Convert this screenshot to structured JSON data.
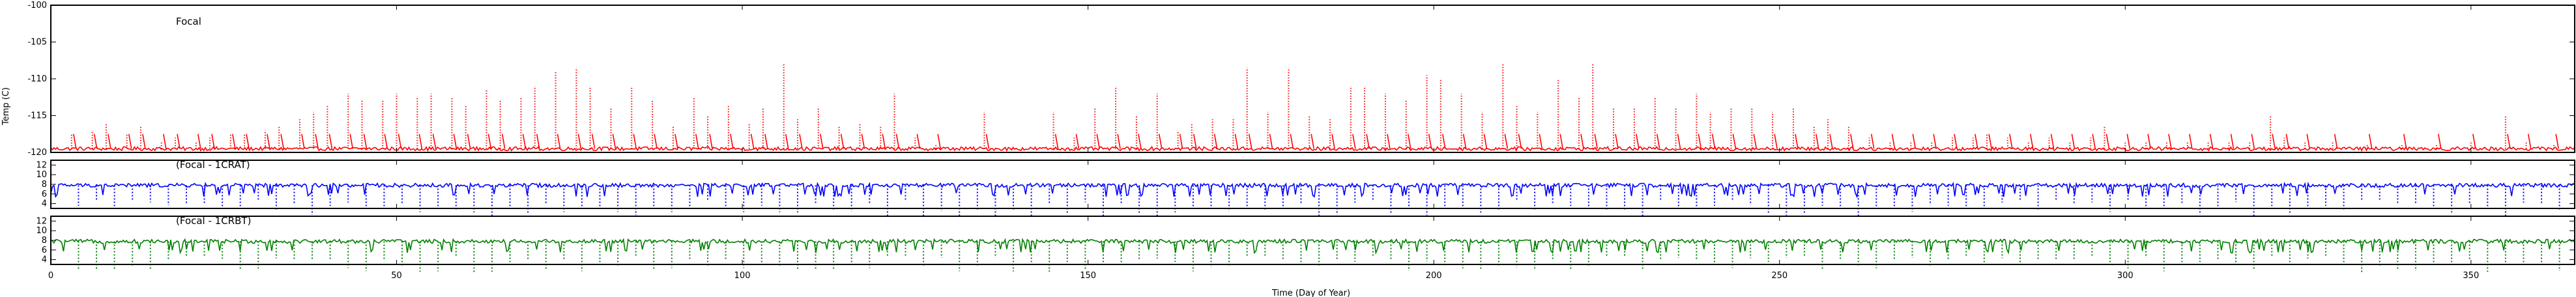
{
  "chart_data": [
    {
      "type": "line",
      "label": "Focal",
      "ylabel": "Temp (C)",
      "ylim": [
        -120,
        -100
      ],
      "yticks": [
        -120,
        -115,
        -110,
        -105,
        -100
      ],
      "xlim": [
        0,
        365
      ],
      "color": "#ff0000",
      "baseline": -119.5,
      "spikes": [
        [
          3,
          -117.5
        ],
        [
          6,
          -117.0
        ],
        [
          8,
          -116.0
        ],
        [
          11,
          -117.5
        ],
        [
          13,
          -116.5
        ],
        [
          16,
          -118.5
        ],
        [
          18,
          -118.0
        ],
        [
          21,
          -118.5
        ],
        [
          23,
          -118.0
        ],
        [
          26,
          -117.5
        ],
        [
          28,
          -117.5
        ],
        [
          31,
          -117.0
        ],
        [
          33,
          -116.5
        ],
        [
          36,
          -115.5
        ],
        [
          38,
          -114.5
        ],
        [
          40,
          -113.5
        ],
        [
          43,
          -112.0
        ],
        [
          45,
          -113.0
        ],
        [
          48,
          -113.0
        ],
        [
          50,
          -112.0
        ],
        [
          53,
          -112.5
        ],
        [
          55,
          -112.0
        ],
        [
          58,
          -112.5
        ],
        [
          60,
          -113.5
        ],
        [
          63,
          -111.5
        ],
        [
          65,
          -113.0
        ],
        [
          68,
          -112.5
        ],
        [
          70,
          -111.0
        ],
        [
          73,
          -109.0
        ],
        [
          76,
          -108.5
        ],
        [
          78,
          -111.0
        ],
        [
          81,
          -114.0
        ],
        [
          84,
          -111.0
        ],
        [
          87,
          -113.0
        ],
        [
          90,
          -116.5
        ],
        [
          93,
          -112.5
        ],
        [
          95,
          -115.0
        ],
        [
          98,
          -113.5
        ],
        [
          101,
          -116.0
        ],
        [
          103,
          -114.0
        ],
        [
          106,
          -108.0
        ],
        [
          108,
          -115.5
        ],
        [
          111,
          -114.0
        ],
        [
          114,
          -116.5
        ],
        [
          117,
          -116.0
        ],
        [
          120,
          -116.5
        ],
        [
          122,
          -112.0
        ],
        [
          125,
          -118.0
        ],
        [
          128,
          -119.0
        ],
        [
          135,
          -114.5
        ],
        [
          145,
          -114.5
        ],
        [
          148,
          -118.0
        ],
        [
          151,
          -114.0
        ],
        [
          154,
          -111.0
        ],
        [
          157,
          -115.0
        ],
        [
          160,
          -112.0
        ],
        [
          163,
          -117.0
        ],
        [
          165,
          -116.0
        ],
        [
          168,
          -115.5
        ],
        [
          171,
          -115.5
        ],
        [
          173,
          -108.5
        ],
        [
          176,
          -114.5
        ],
        [
          179,
          -108.5
        ],
        [
          182,
          -115.0
        ],
        [
          185,
          -115.5
        ],
        [
          188,
          -111.0
        ],
        [
          190,
          -111.0
        ],
        [
          193,
          -112.0
        ],
        [
          196,
          -113.0
        ],
        [
          199,
          -109.5
        ],
        [
          201,
          -110.0
        ],
        [
          204,
          -112.0
        ],
        [
          207,
          -114.5
        ],
        [
          210,
          -108.0
        ],
        [
          212,
          -113.5
        ],
        [
          215,
          -114.5
        ],
        [
          218,
          -110.0
        ],
        [
          221,
          -112.5
        ],
        [
          223,
          -108.0
        ],
        [
          226,
          -114.0
        ],
        [
          229,
          -114.0
        ],
        [
          232,
          -112.5
        ],
        [
          235,
          -114.0
        ],
        [
          238,
          -112.0
        ],
        [
          240,
          -114.5
        ],
        [
          243,
          -114.0
        ],
        [
          246,
          -114.0
        ],
        [
          249,
          -114.5
        ],
        [
          252,
          -114.0
        ],
        [
          255,
          -116.5
        ],
        [
          257,
          -115.5
        ],
        [
          260,
          -116.5
        ],
        [
          263,
          -118.0
        ],
        [
          266,
          -118.5
        ],
        [
          269,
          -118.5
        ],
        [
          272,
          -118.5
        ],
        [
          275,
          -118.0
        ],
        [
          278,
          -118.0
        ],
        [
          280,
          -117.5
        ],
        [
          283,
          -118.0
        ],
        [
          286,
          -118.5
        ],
        [
          289,
          -118.0
        ],
        [
          292,
          -118.5
        ],
        [
          295,
          -118.0
        ],
        [
          297,
          -116.5
        ],
        [
          300,
          -118.5
        ],
        [
          303,
          -118.5
        ],
        [
          306,
          -118.5
        ],
        [
          309,
          -118.5
        ],
        [
          312,
          -118.5
        ],
        [
          315,
          -118.5
        ],
        [
          318,
          -118.5
        ],
        [
          321,
          -115.0
        ],
        [
          323,
          -118.0
        ],
        [
          326,
          -118.5
        ],
        [
          330,
          -118.5
        ],
        [
          335,
          -119.0
        ],
        [
          340,
          -119.0
        ],
        [
          345,
          -119.0
        ],
        [
          350,
          -118.5
        ],
        [
          355,
          -115.0
        ],
        [
          358,
          -118.5
        ],
        [
          362,
          -119.0
        ]
      ]
    },
    {
      "type": "line",
      "label": "(Focal - 1CRAT)",
      "ylim": [
        3,
        13
      ],
      "yticks": [
        4,
        6,
        8,
        10,
        12
      ],
      "xlim": [
        0,
        365
      ],
      "color": "#0000ff",
      "baseline": 7.8
    },
    {
      "type": "line",
      "label": "(Focal - 1CRBT)",
      "ylim": [
        3,
        13
      ],
      "yticks": [
        4,
        6,
        8,
        10,
        12
      ],
      "xlim": [
        0,
        365
      ],
      "color": "#008000",
      "baseline": 7.8
    }
  ],
  "xaxis": {
    "label": "Time (Day of Year)",
    "ticks": [
      0,
      50,
      100,
      150,
      200,
      250,
      300,
      350
    ]
  }
}
